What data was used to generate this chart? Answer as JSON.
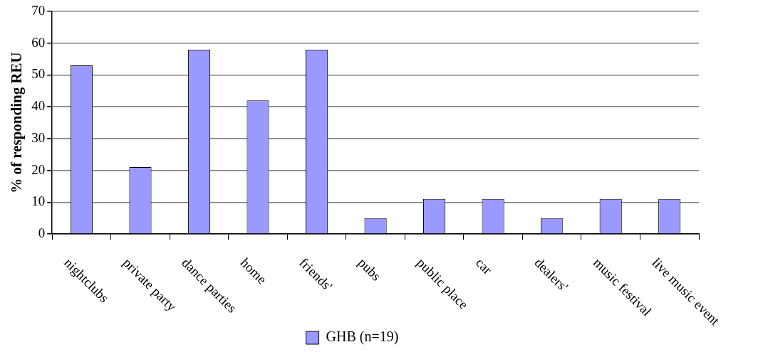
{
  "chart_data": {
    "type": "bar",
    "ylabel": "% of responding REU",
    "categories": [
      "nightclubs",
      "private party",
      "dance parties",
      "home",
      "friends'",
      "pubs",
      "public place",
      "car",
      "dealers'",
      "music festival",
      "live music event"
    ],
    "series": [
      {
        "name": "GHB (n=19)",
        "color": "#9999ff",
        "values": [
          53,
          21,
          58,
          42,
          58,
          5,
          11,
          11,
          5,
          11,
          11
        ]
      }
    ],
    "ylim": [
      0,
      70
    ],
    "yticks": [
      0,
      10,
      20,
      30,
      40,
      50,
      60,
      70
    ],
    "grid": "y",
    "legend": "bottom"
  }
}
